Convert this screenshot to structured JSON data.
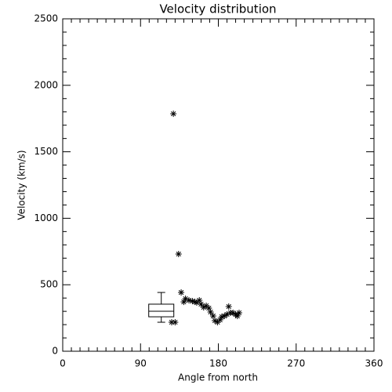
{
  "chart_data": {
    "type": "scatter",
    "title": "Velocity distribution",
    "x_label": "Angle from north",
    "y_label": "Velocity (km/s)",
    "xlim": [
      0,
      360
    ],
    "xticks": [
      0,
      90,
      180,
      270,
      360
    ],
    "xminorticks": [
      10,
      20,
      30,
      40,
      50,
      60,
      70,
      80,
      100,
      110,
      120,
      130,
      140,
      150,
      160,
      170,
      190,
      200,
      210,
      220,
      230,
      240,
      250,
      260,
      280,
      290,
      300,
      310,
      320,
      330,
      340,
      350
    ],
    "ylim": [
      0,
      2500
    ],
    "yticks": [
      0,
      500,
      1000,
      1500,
      2000,
      2500
    ],
    "yminorticks": [
      100,
      200,
      300,
      400,
      600,
      700,
      800,
      900,
      1100,
      1200,
      1300,
      1400,
      1600,
      1700,
      1800,
      1900,
      2100,
      2200,
      2300,
      2400
    ],
    "marker": "asterisk",
    "color": "#000000",
    "x": [
      128,
      126,
      130,
      134,
      137,
      140,
      142,
      146,
      150,
      153,
      155,
      158,
      160,
      163,
      166,
      169,
      171,
      174,
      176,
      179,
      182,
      184,
      187,
      190,
      192,
      194,
      197,
      200,
      202,
      204
    ],
    "values": [
      1786,
      218,
      218,
      731,
      442,
      371,
      395,
      383,
      377,
      371,
      366,
      383,
      354,
      330,
      342,
      324,
      295,
      265,
      230,
      218,
      236,
      259,
      265,
      277,
      336,
      289,
      289,
      277,
      265,
      289
    ],
    "box": {
      "x": 114,
      "whislo": 218,
      "q1": 259,
      "median": 301,
      "q3": 354,
      "whishi": 442
    }
  }
}
